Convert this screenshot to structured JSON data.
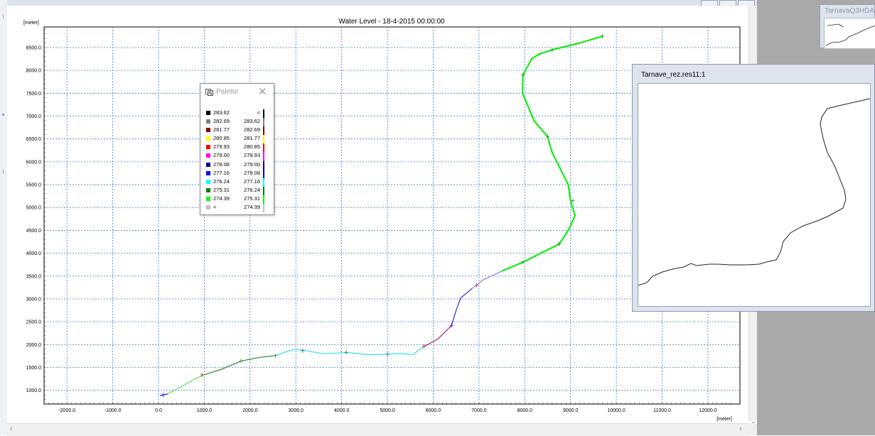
{
  "chart_window": {
    "y_unit_label": "[meter]",
    "x_unit_label": "[meter]"
  },
  "chart_data": {
    "type": "line",
    "title": "Water Level - 18-4-2015 00:00:00",
    "xlabel": "[meter]",
    "ylabel": "[meter]",
    "xlim": [
      -2500,
      12700
    ],
    "ylim": [
      700,
      8950
    ],
    "grid": true,
    "x_ticks": [
      "-2000.0",
      "-1000.0",
      "0.0",
      "1000.0",
      "2000.0",
      "3000.0",
      "4000.0",
      "5000.0",
      "6000.0",
      "7000.0",
      "8000.0",
      "9000.0",
      "10000.0",
      "11000.0",
      "12000.0"
    ],
    "y_ticks": [
      "1000.0",
      "1500.0",
      "2000.0",
      "2500.0",
      "3000.0",
      "3500.0",
      "4000.0",
      "4500.0",
      "5000.0",
      "5500.0",
      "6000.0",
      "6500.0",
      "7000.0",
      "7500.0",
      "8000.0",
      "8500.0"
    ],
    "segments": [
      {
        "color": "#1010ee",
        "points": [
          [
            30,
            880
          ],
          [
            100,
            900
          ],
          [
            200,
            920
          ]
        ]
      },
      {
        "color": "#52e052",
        "points": [
          [
            200,
            920
          ],
          [
            500,
            1080
          ],
          [
            800,
            1250
          ],
          [
            1000,
            1340
          ]
        ]
      },
      {
        "color": "#2a8a2a",
        "points": [
          [
            1000,
            1340
          ],
          [
            1400,
            1470
          ],
          [
            1800,
            1640
          ],
          [
            2200,
            1720
          ],
          [
            2550,
            1760
          ]
        ]
      },
      {
        "color": "#28e3ee",
        "points": [
          [
            2550,
            1760
          ],
          [
            2800,
            1850
          ],
          [
            3000,
            1900
          ],
          [
            3200,
            1870
          ],
          [
            3600,
            1800
          ],
          [
            4100,
            1830
          ],
          [
            4600,
            1780
          ],
          [
            5000,
            1790
          ],
          [
            5300,
            1810
          ],
          [
            5550,
            1780
          ],
          [
            5800,
            1960
          ]
        ]
      },
      {
        "color": "#a01e6e",
        "points": [
          [
            5800,
            1960
          ],
          [
            6100,
            2120
          ],
          [
            6400,
            2420
          ]
        ]
      },
      {
        "color": "#2b2bd8",
        "points": [
          [
            6400,
            2420
          ],
          [
            6500,
            2750
          ],
          [
            6600,
            3020
          ],
          [
            6850,
            3230
          ]
        ]
      },
      {
        "color": "#8080ee",
        "points": [
          [
            6850,
            3230
          ],
          [
            7100,
            3420
          ],
          [
            7500,
            3610
          ]
        ]
      },
      {
        "color": "#10ee10",
        "points": [
          [
            7500,
            3610
          ],
          [
            7950,
            3800
          ],
          [
            8350,
            4000
          ],
          [
            8750,
            4200
          ],
          [
            8950,
            4500
          ],
          [
            9100,
            4820
          ],
          [
            9000,
            5150
          ],
          [
            8950,
            5500
          ],
          [
            8600,
            6200
          ],
          [
            8500,
            6550
          ],
          [
            8200,
            6900
          ],
          [
            8100,
            7150
          ],
          [
            7950,
            7500
          ],
          [
            7960,
            7900
          ],
          [
            8150,
            8250
          ],
          [
            8300,
            8350
          ],
          [
            8600,
            8450
          ],
          [
            9200,
            8600
          ],
          [
            9700,
            8750
          ]
        ]
      }
    ],
    "markers": [
      {
        "x": 100,
        "y": 900,
        "color": "#1010ee"
      },
      {
        "x": 950,
        "y": 1340,
        "color": "#cc2222"
      },
      {
        "x": 1800,
        "y": 1640,
        "color": "#2a8a2a"
      },
      {
        "x": 2550,
        "y": 1760,
        "color": "#2a8a2a"
      },
      {
        "x": 3150,
        "y": 1870,
        "color": "#1a6a6a"
      },
      {
        "x": 4100,
        "y": 1830,
        "color": "#1a6a6a"
      },
      {
        "x": 5000,
        "y": 1790,
        "color": "#1a6a6a"
      },
      {
        "x": 5800,
        "y": 1960,
        "color": "#cc2222"
      },
      {
        "x": 6400,
        "y": 2420,
        "color": "#1010ee"
      },
      {
        "x": 6950,
        "y": 3300,
        "color": "#cc2222"
      },
      {
        "x": 7950,
        "y": 3800,
        "color": "#2a8a2a"
      },
      {
        "x": 8750,
        "y": 4200,
        "color": "#2a8a2a"
      },
      {
        "x": 9050,
        "y": 5150,
        "color": "#2a8a2a"
      },
      {
        "x": 8500,
        "y": 6550,
        "color": "#2a8a2a"
      },
      {
        "x": 7960,
        "y": 7900,
        "color": "#2a8a2a"
      },
      {
        "x": 8600,
        "y": 8450,
        "color": "#2a8a2a"
      },
      {
        "x": 9700,
        "y": 8750,
        "color": "#2a8a2a"
      }
    ]
  },
  "palette": {
    "title": "Palette",
    "rows": [
      {
        "color": "#000000",
        "from": "283.62",
        "to": "<",
        "bar": "#000000"
      },
      {
        "color": "#808080",
        "from": "282.69",
        "to": "283.62",
        "bar": "#808080"
      },
      {
        "color": "#7f0000",
        "from": "281.77",
        "to": "282.69",
        "bar": "#7f0000"
      },
      {
        "color": "#ffff00",
        "from": "280.85",
        "to": "281.77",
        "bar": "#ffff00"
      },
      {
        "color": "#ff0000",
        "from": "279.93",
        "to": "280.85",
        "bar": "#ff0000"
      },
      {
        "color": "#ff00ff",
        "from": "279.00",
        "to": "279.93",
        "bar": "#ff00ff"
      },
      {
        "color": "#000080",
        "from": "278.08",
        "to": "279.00",
        "bar": "#000080"
      },
      {
        "color": "#0000ff",
        "from": "277.16",
        "to": "278.08",
        "bar": "#0000ff"
      },
      {
        "color": "#00ffff",
        "from": "276.24",
        "to": "277.16",
        "bar": "#00ffff"
      },
      {
        "color": "#008000",
        "from": "275.31",
        "to": "276.24",
        "bar": "#008000"
      },
      {
        "color": "#00ff00",
        "from": "274.39",
        "to": "275.31",
        "bar": "#00ff00"
      },
      {
        "color": "#c0c0c0",
        "from": "<",
        "to": "274.39",
        "bar": "#c0c0c0"
      }
    ]
  },
  "result_window": {
    "title": "Tarnave_rez.res11:1"
  },
  "thumbnail_window": {
    "title": "TarnavaQ3HDA"
  }
}
